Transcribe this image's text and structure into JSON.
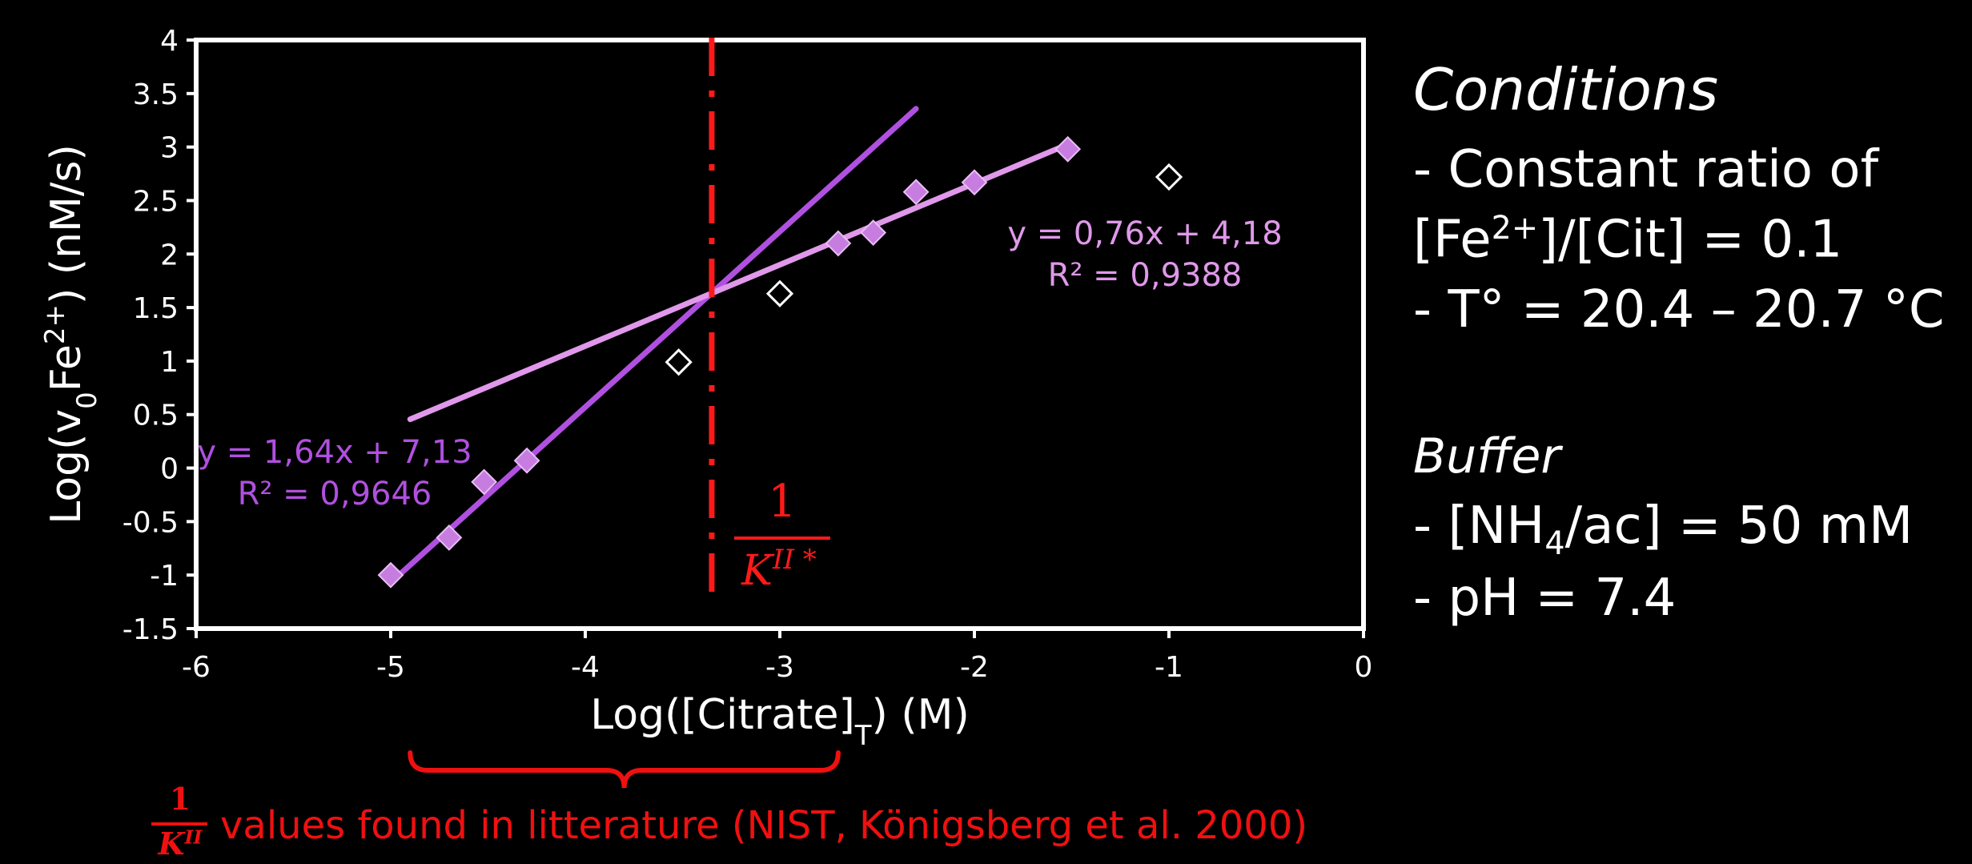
{
  "chart_data": {
    "type": "scatter",
    "xlabel": "Log([Citrate]T) (M)",
    "ylabel": "Log(v0Fe2+) (nM/s)",
    "xlim": [
      -6,
      0
    ],
    "ylim": [
      -1.5,
      4
    ],
    "x_ticks": [
      "-6",
      "-5",
      "-4",
      "-3",
      "-2",
      "-1",
      "0"
    ],
    "y_ticks": [
      "4",
      "3.5",
      "3",
      "2.5",
      "2",
      "1.5",
      "1",
      "0.5",
      "0",
      "-0.5",
      "-1",
      "-1.5"
    ],
    "grid": false,
    "series": [
      {
        "marker": "filled-diamond",
        "color": "#c77de0",
        "points": [
          {
            "x": -5.0,
            "y": -1.0
          },
          {
            "x": -4.7,
            "y": -0.65
          },
          {
            "x": -4.52,
            "y": -0.13
          },
          {
            "x": -4.3,
            "y": 0.07
          },
          {
            "x": -2.7,
            "y": 2.1
          },
          {
            "x": -2.52,
            "y": 2.2
          },
          {
            "x": -2.3,
            "y": 2.58
          },
          {
            "x": -2.0,
            "y": 2.67
          },
          {
            "x": -1.52,
            "y": 2.98
          }
        ]
      },
      {
        "marker": "open-diamond",
        "color": "#ffffff",
        "points": [
          {
            "x": -3.52,
            "y": 0.99
          },
          {
            "x": -3.0,
            "y": 1.63
          },
          {
            "x": -1.0,
            "y": 2.72
          }
        ]
      }
    ],
    "trendlines": [
      {
        "slope": 1.64,
        "intercept": 7.13,
        "x_range": [
          -5.0,
          -2.3
        ],
        "color": "#b050e0",
        "equation": "y = 1,64x + 7,13",
        "r2": "R² = 0,9646"
      },
      {
        "slope": 0.76,
        "intercept": 4.18,
        "x_range": [
          -4.9,
          -1.52
        ],
        "color": "#e098ea",
        "equation": "y = 0,76x + 4,18",
        "r2": "R² = 0,9388"
      }
    ],
    "vline": {
      "x": -3.35,
      "color": "#ff1a1a",
      "label_numerator": "1",
      "label_denominator": "K",
      "label_superscript": "II *"
    },
    "brace": {
      "x_range": [
        -4.9,
        -2.7
      ],
      "color": "#f01010"
    }
  },
  "side_panel": {
    "conditions_title": "Conditions",
    "line1": "- Constant ratio of",
    "line2_pre": "[Fe",
    "line2_sup": "2+",
    "line2_post": "]/[Cit] = 0.1",
    "line3": "- T° = 20.4 – 20.7 °C",
    "buffer_title": "Buffer",
    "line4_pre": "- [NH",
    "line4_sub": "4",
    "line4_post": "/ac] = 50 mM",
    "line5": "- pH = 7.4"
  },
  "footnote": {
    "frac_numerator": "1",
    "frac_denominator": "K",
    "frac_superscript": "II",
    "text": "values found in litterature (NIST, Königsberg et al. 2000)"
  },
  "colors": {
    "background": "#000000",
    "accent_red": "#f01010",
    "data_purple": "#c77de0"
  }
}
